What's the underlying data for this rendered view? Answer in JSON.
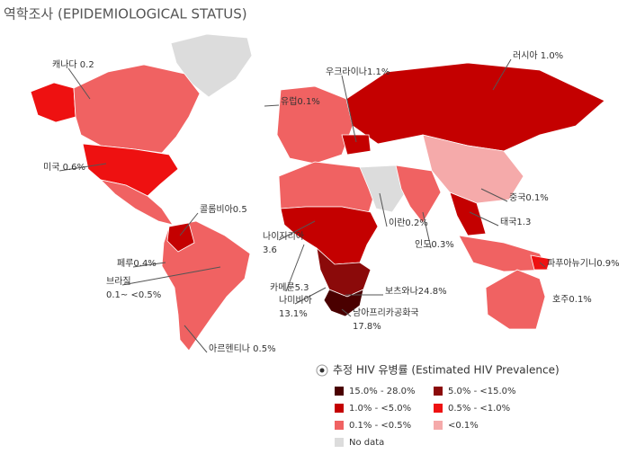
{
  "title": "역학조사 (EPIDEMIOLOGICAL STATUS)",
  "annotations": [
    {
      "lines": [
        "캐나다 0.2"
      ]
    },
    {
      "lines": [
        "러시아 1.0%"
      ]
    },
    {
      "lines": [
        "우크라이나1.1%"
      ]
    },
    {
      "lines": [
        "유럽0.1%"
      ]
    },
    {
      "lines": [
        "미국 0.6%"
      ]
    },
    {
      "lines": [
        "콜롬비아0.5"
      ]
    },
    {
      "lines": [
        "중국0.1%"
      ]
    },
    {
      "lines": [
        "이란0.2%"
      ]
    },
    {
      "lines": [
        "태국1.3"
      ]
    },
    {
      "lines": [
        "인도0.3%"
      ]
    },
    {
      "lines": [
        "나이지리아",
        "3.6"
      ]
    },
    {
      "lines": [
        "페루0.4%"
      ]
    },
    {
      "lines": [
        "브라질",
        "0.1~ <0.5%"
      ]
    },
    {
      "lines": [
        "카메룬5.3"
      ]
    },
    {
      "lines": [
        "나미비아",
        "13.1%"
      ]
    },
    {
      "lines": [
        "보츠와나24.8%"
      ]
    },
    {
      "lines": [
        "남아프리카공화국",
        "17.8%"
      ]
    },
    {
      "lines": [
        "파푸아뉴기니0.9%"
      ]
    },
    {
      "lines": [
        "호주0.1%"
      ]
    },
    {
      "lines": [
        "아르헨티나 0.5%"
      ]
    }
  ],
  "legend": {
    "title": "추정 HIV 유병률 (Estimated HIV Prevalence)",
    "items": [
      {
        "label": "15.0% - 28.0%",
        "color": "#4a0000"
      },
      {
        "label": "5.0% - <15.0%",
        "color": "#8b0a0a"
      },
      {
        "label": "1.0% - <5.0%",
        "color": "#c40000"
      },
      {
        "label": "0.5% - <1.0%",
        "color": "#ee1111"
      },
      {
        "label": "0.1% - <0.5%",
        "color": "#f06262"
      },
      {
        "label": "<0.1%",
        "color": "#f5aaaa"
      },
      {
        "label": "No data",
        "color": "#dcdcdc"
      }
    ]
  }
}
